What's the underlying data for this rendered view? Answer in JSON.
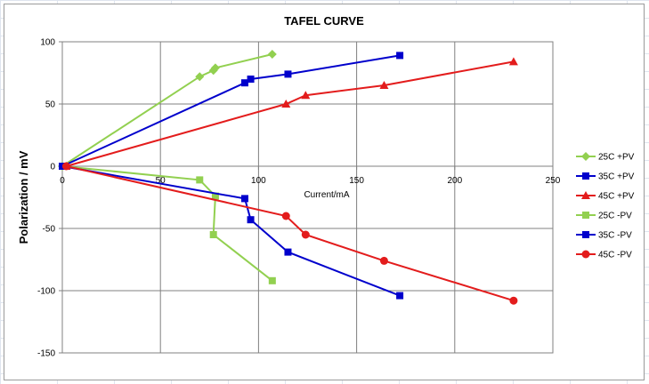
{
  "chart_data": {
    "type": "scatter",
    "title": "TAFEL CURVE",
    "xlabel": "Current/mA",
    "ylabel": "Polarization / mV",
    "xlim": [
      0,
      250
    ],
    "ylim": [
      -150,
      100
    ],
    "xticks": [
      0,
      50,
      100,
      150,
      200,
      250
    ],
    "yticks": [
      -150,
      -100,
      -50,
      0,
      50,
      100
    ],
    "grid": true,
    "legend_position": "right",
    "series": [
      {
        "name": "25C +PV",
        "color": "#92d050",
        "marker": "diamond",
        "x": [
          0,
          70,
          77,
          78,
          107
        ],
        "y": [
          0,
          72,
          77,
          79,
          90
        ]
      },
      {
        "name": "35C +PV",
        "color": "#0000cc",
        "marker": "square",
        "x": [
          0,
          93,
          96,
          115,
          172
        ],
        "y": [
          0,
          67,
          70,
          74,
          89
        ]
      },
      {
        "name": "45C +PV",
        "color": "#e31c1c",
        "marker": "triangle",
        "x": [
          2,
          114,
          124,
          164,
          230
        ],
        "y": [
          0,
          50,
          57,
          65,
          84
        ]
      },
      {
        "name": "25C -PV",
        "color": "#92d050",
        "marker": "square",
        "x": [
          0,
          70,
          78,
          77,
          107
        ],
        "y": [
          0,
          -11,
          -24,
          -55,
          -92
        ]
      },
      {
        "name": "35C -PV",
        "color": "#0000cc",
        "marker": "square",
        "x": [
          0,
          93,
          96,
          115,
          172
        ],
        "y": [
          0,
          -26,
          -43,
          -69,
          -104
        ]
      },
      {
        "name": "45C -PV",
        "color": "#e31c1c",
        "marker": "circle",
        "x": [
          2,
          114,
          124,
          164,
          230
        ],
        "y": [
          0,
          -40,
          -55,
          -76,
          -108
        ]
      }
    ]
  }
}
